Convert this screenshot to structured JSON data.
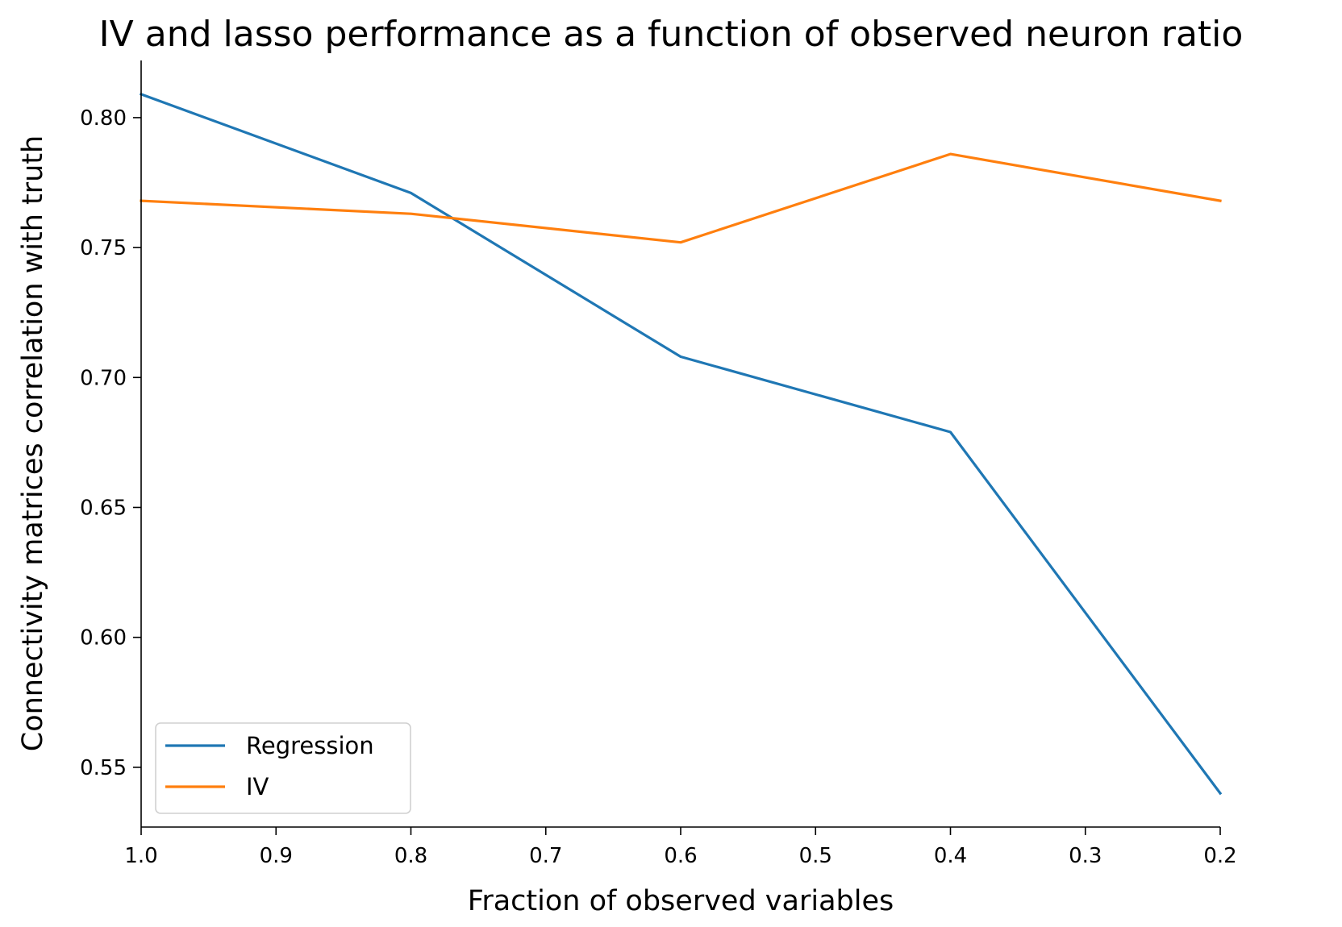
{
  "chart_data": {
    "type": "line",
    "title": "IV and lasso performance as a function of observed neuron ratio",
    "xlabel": "Fraction of observed variables",
    "ylabel": "Connectivity matrices correlation with truth",
    "x": [
      1.0,
      0.8,
      0.6,
      0.4,
      0.2
    ],
    "xlim": [
      1.0,
      0.2
    ],
    "x_inverted": true,
    "ylim": [
      0.527,
      0.822
    ],
    "xticks": [
      1.0,
      0.9,
      0.8,
      0.7,
      0.6,
      0.5,
      0.4,
      0.3,
      0.2
    ],
    "xtick_labels": [
      "1.0",
      "0.9",
      "0.8",
      "0.7",
      "0.6",
      "0.5",
      "0.4",
      "0.3",
      "0.2"
    ],
    "yticks": [
      0.55,
      0.6,
      0.65,
      0.7,
      0.75,
      0.8
    ],
    "ytick_labels": [
      "0.55",
      "0.60",
      "0.65",
      "0.70",
      "0.75",
      "0.80"
    ],
    "grid": false,
    "legend_position": "lower-left",
    "series": [
      {
        "name": "Regression",
        "color": "#1f77b4",
        "values": [
          0.809,
          0.771,
          0.708,
          0.679,
          0.54
        ]
      },
      {
        "name": "IV",
        "color": "#ff7f0e",
        "values": [
          0.768,
          0.763,
          0.752,
          0.786,
          0.768
        ]
      }
    ]
  }
}
